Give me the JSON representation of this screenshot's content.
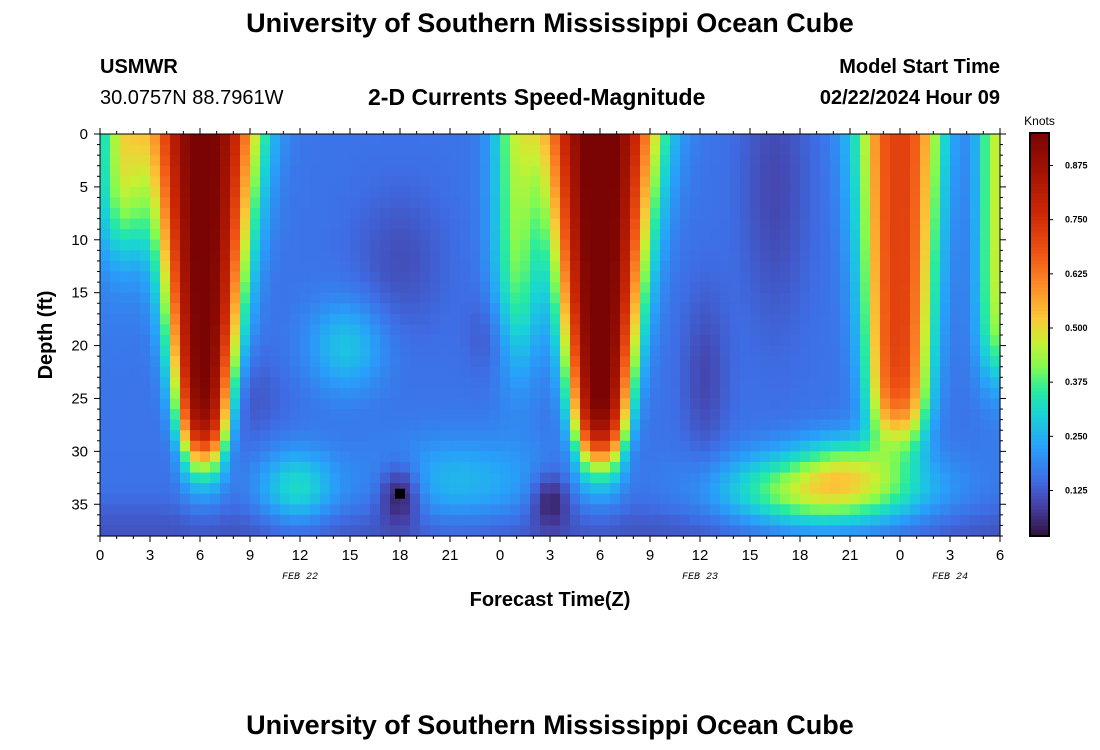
{
  "header": {
    "title": "University of Southern Mississippi Ocean Cube",
    "station_name": "USMWR",
    "station_coords": "30.0757N  88.7961W",
    "subtitle": "2-D Currents Speed-Magnitude",
    "model_start_label": "Model Start Time",
    "model_start_value": "02/22/2024 Hour 09"
  },
  "footer": {
    "title": "University of Southern Mississippi Ocean Cube"
  },
  "chart_data": {
    "type": "heatmap",
    "title": "2-D Currents Speed-Magnitude",
    "xlabel": "Forecast Time(Z)",
    "ylabel": "Depth (ft)",
    "x_unit": "forecast hours from 00Z Feb 22",
    "xlim": [
      0,
      54
    ],
    "ylim": [
      0,
      38
    ],
    "x_tick_values": [
      0,
      3,
      6,
      9,
      12,
      15,
      18,
      21,
      24,
      27,
      30,
      33,
      36,
      39,
      42,
      45,
      48,
      51,
      54
    ],
    "x_tick_labels": [
      "0",
      "3",
      "6",
      "9",
      "12",
      "15",
      "18",
      "21",
      "0",
      "3",
      "6",
      "9",
      "12",
      "15",
      "18",
      "21",
      "0",
      "3",
      "6"
    ],
    "y_tick_values": [
      0,
      5,
      10,
      15,
      20,
      25,
      30,
      35
    ],
    "y_tick_labels": [
      "0",
      "5",
      "10",
      "15",
      "20",
      "25",
      "30",
      "35"
    ],
    "date_labels": [
      {
        "hour": 12,
        "text": "FEB 22"
      },
      {
        "hour": 36,
        "text": "FEB 23"
      },
      {
        "hour": 51,
        "text": "FEB 24"
      }
    ],
    "colorbar": {
      "label": "Knots",
      "range": [
        0.02,
        0.95
      ],
      "ticks": [
        0.125,
        0.25,
        0.375,
        0.5,
        0.625,
        0.75,
        0.875
      ],
      "tick_labels": [
        "0.125",
        "0.250",
        "0.375",
        "0.500",
        "0.625",
        "0.750",
        "0.875"
      ]
    },
    "description_features": [
      {
        "name": "strong-current-core-1",
        "center_hour": 6.2,
        "depth_top": 0,
        "depth_bottom": 30,
        "peak_knots": 0.93
      },
      {
        "name": "strong-current-core-2",
        "center_hour": 30.0,
        "depth_top": 0,
        "depth_bottom": 30,
        "peak_knots": 0.95
      },
      {
        "name": "strong-current-core-3",
        "center_hour": 48.0,
        "depth_top": 0,
        "depth_bottom": 28,
        "peak_knots": 0.7
      },
      {
        "name": "bottom-layer-current",
        "hour_range": [
          39,
          47
        ],
        "depth_range": [
          30,
          37
        ],
        "peak_knots": 0.48
      },
      {
        "name": "minimum-1",
        "hour": 18,
        "depth": 34,
        "min_knots": 0.02
      },
      {
        "name": "minimum-2",
        "hour": 27,
        "depth": 34.5,
        "min_knots": 0.05
      }
    ]
  }
}
